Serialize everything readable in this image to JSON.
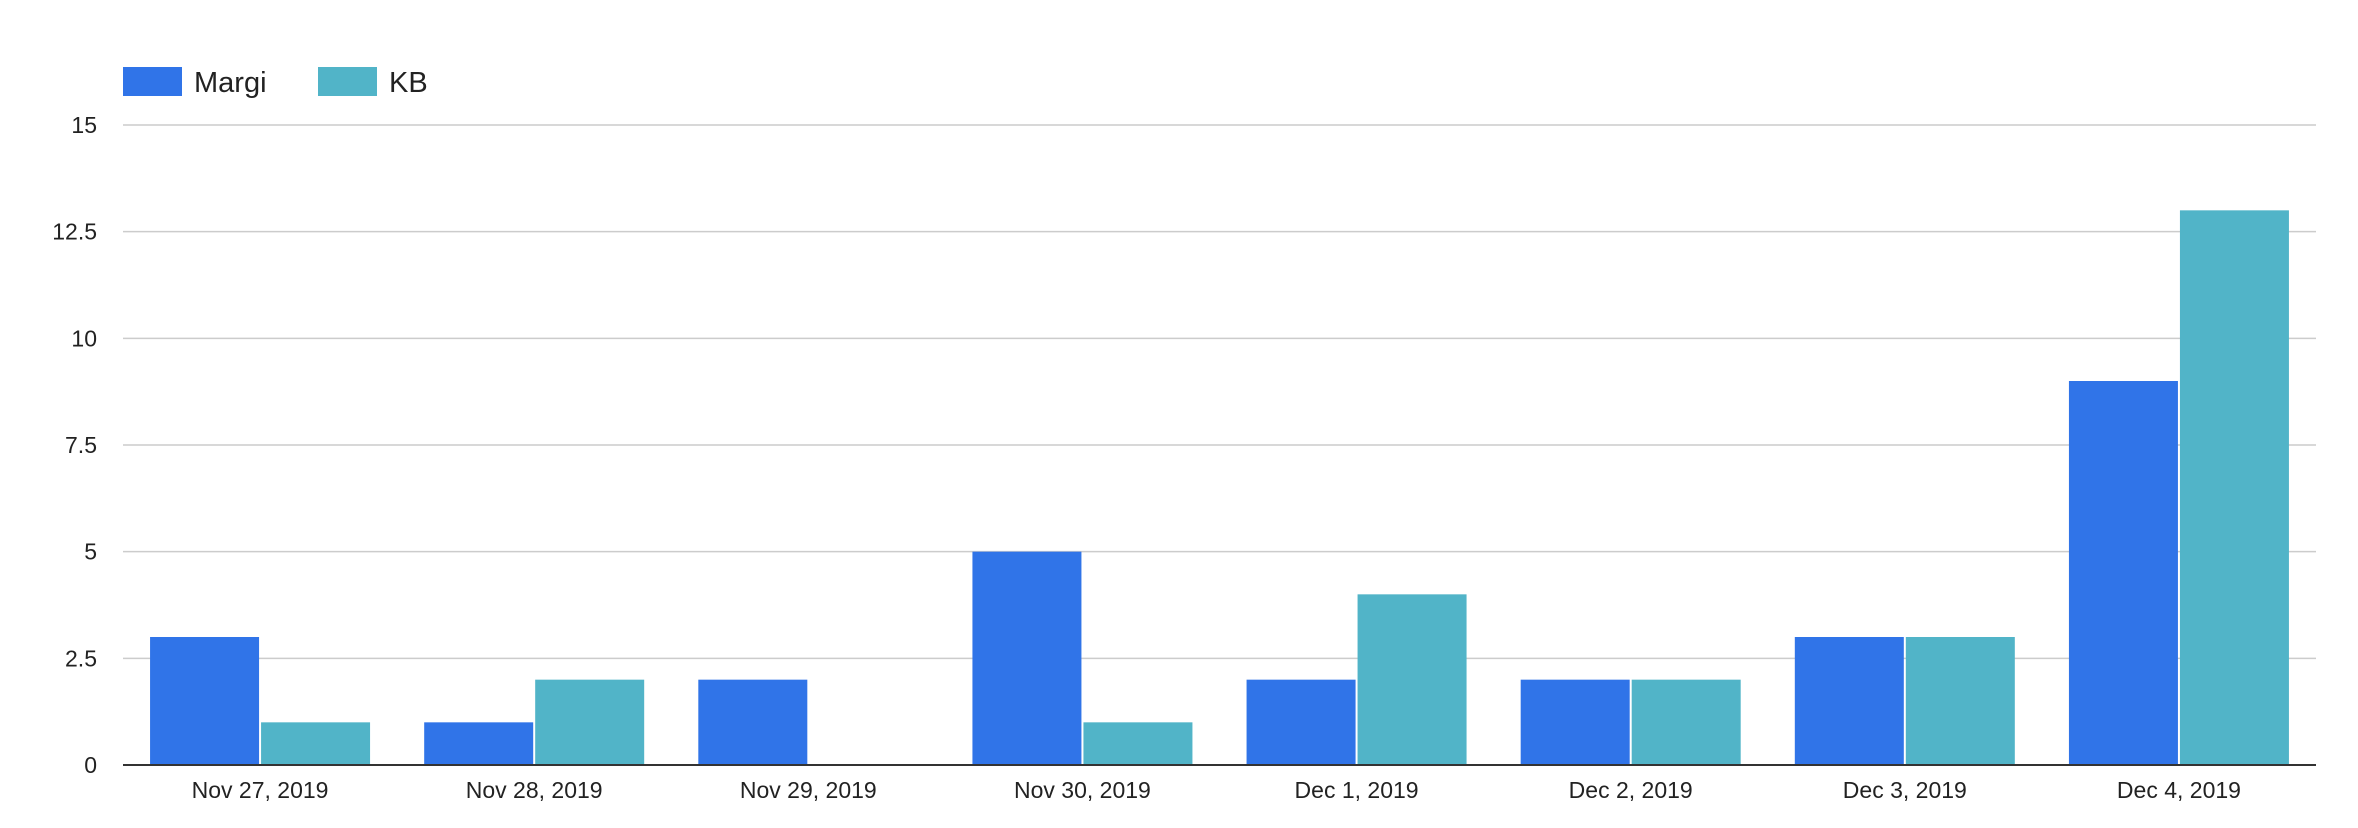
{
  "chart_data": {
    "type": "bar",
    "title": "",
    "xlabel": "",
    "ylabel": "",
    "categories": [
      "Nov 27, 2019",
      "Nov 28, 2019",
      "Nov 29, 2019",
      "Nov 30, 2019",
      "Dec 1, 2019",
      "Dec 2, 2019",
      "Dec 3, 2019",
      "Dec 4, 2019"
    ],
    "series": [
      {
        "name": "Margi",
        "color": "#3074e8",
        "values": [
          3,
          1,
          2,
          5,
          2,
          2,
          3,
          9
        ]
      },
      {
        "name": "KB",
        "color": "#51b4c8",
        "values": [
          1,
          2,
          0,
          1,
          4,
          2,
          3,
          13
        ]
      }
    ],
    "ylim": [
      0,
      15
    ],
    "yticks": [
      0,
      2.5,
      5,
      7.5,
      10,
      12.5,
      15
    ],
    "ytick_labels": [
      "0",
      "2.5",
      "5",
      "7.5",
      "10",
      "12.5",
      "15"
    ],
    "grid": true,
    "legend_position": "top-left"
  }
}
